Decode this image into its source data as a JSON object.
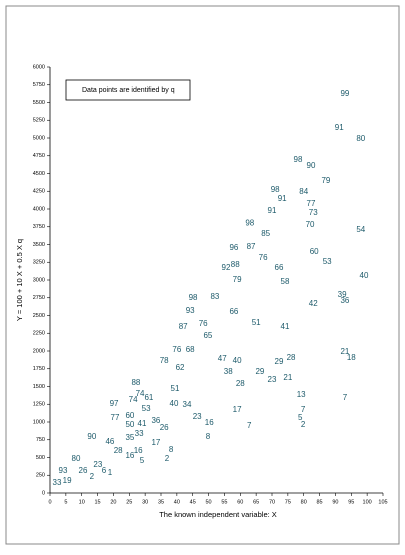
{
  "chart_data": {
    "type": "scatter",
    "xlabel": "The known independent variable: X",
    "ylabel": "Y = 100 + 10 X + 0.5 X q",
    "legend_text": "Data points are identified by q",
    "xlim": [
      0,
      105
    ],
    "xticks": [
      0,
      5,
      10,
      15,
      20,
      25,
      30,
      35,
      40,
      45,
      50,
      55,
      60,
      65,
      70,
      75,
      80,
      85,
      90,
      95,
      100,
      105
    ],
    "ylim": [
      0,
      6000
    ],
    "yticks": [
      0,
      250,
      500,
      750,
      1000,
      1250,
      1500,
      1750,
      2000,
      2250,
      2500,
      2750,
      3000,
      3250,
      3500,
      3750,
      4000,
      4250,
      4500,
      4750,
      5000,
      5250,
      5500,
      5750,
      6000
    ],
    "color": "#1d5a6a",
    "x": [
      93,
      91.2,
      98,
      78.2,
      82.3,
      87,
      71,
      73.2,
      80,
      82.3,
      70,
      83,
      82,
      63,
      68,
      98,
      58,
      63.4,
      83.3,
      67.2,
      87.4,
      55.5,
      58.4,
      72.2,
      59,
      99,
      74.1,
      45.1,
      52,
      92.1,
      93,
      83,
      44.2,
      58,
      48.3,
      65,
      74.1,
      42,
      49.8,
      40,
      44.2,
      93,
      95,
      36,
      54.3,
      59,
      72.2,
      76,
      41,
      56.2,
      66.2,
      70,
      75,
      60,
      27.1,
      39.4,
      28.4,
      79.2,
      93,
      31.2,
      20.2,
      26.2,
      39.1,
      43.2,
      30.3,
      59,
      79.8,
      20.5,
      25.2,
      46.4,
      78.9,
      25.2,
      29,
      33.4,
      50.2,
      62.8,
      79.8,
      36,
      28.1,
      13.2,
      49.8,
      25.2,
      18.9,
      33.4,
      21.5,
      27.8,
      38.2,
      25.2,
      29,
      36.9,
      8.2,
      15.1,
      17,
      18.9,
      10.4,
      4.1,
      13.2,
      5.4,
      2.2
    ],
    "values": [
      5620,
      5140,
      4985,
      4690,
      4610,
      4395,
      4270,
      4140,
      4240,
      4070,
      3970,
      3945,
      3775,
      3800,
      3650,
      3705,
      3450,
      3465,
      3395,
      3310,
      3255,
      3170,
      3210,
      3170,
      3000,
      3055,
      2970,
      2745,
      2760,
      2790,
      2705,
      2660,
      2565,
      2550,
      2380,
      2395,
      2340,
      2340,
      2210,
      2015,
      2015,
      1985,
      1900,
      1860,
      1890,
      1860,
      1845,
      1900,
      1760,
      1705,
      1705,
      1590,
      1620,
      1535,
      1550,
      1465,
      1395,
      1380,
      1340,
      1340,
      1255,
      1310,
      1255,
      1240,
      1185,
      1170,
      1170,
      1055,
      1085,
      1070,
      1055,
      960,
      970,
      1015,
      985,
      945,
      960,
      915,
      830,
      790,
      790,
      775,
      720,
      705,
      590,
      590,
      605,
      520,
      450,
      480,
      480,
      395,
      310,
      280,
      310,
      310,
      225,
      170,
      140
    ],
    "point_labels": [
      "99",
      "91",
      "80",
      "98",
      "90",
      "79",
      "98",
      "91",
      "84",
      "77",
      "91",
      "73",
      "70",
      "98",
      "85",
      "54",
      "96",
      "87",
      "60",
      "76",
      "53",
      "92",
      "88",
      "66",
      "79",
      "40",
      "58",
      "98",
      "83",
      "39",
      "36",
      "42",
      "93",
      "66",
      "76",
      "51",
      "41",
      "87",
      "65",
      "76",
      "68",
      "21",
      "18",
      "78",
      "47",
      "40",
      "29",
      "28",
      "62",
      "38",
      "29",
      "23",
      "21",
      "28",
      "88",
      "51",
      "74",
      "13",
      "7",
      "61",
      "97",
      "74",
      "40",
      "34",
      "53",
      "17",
      "7",
      "77",
      "60",
      "23",
      "5",
      "50",
      "41",
      "36",
      "16",
      "7",
      "2",
      "26",
      "33",
      "90",
      "8",
      "35",
      "46",
      "17",
      "28",
      "16",
      "8",
      "16",
      "5",
      "2",
      "80",
      "23",
      "6",
      "1",
      "26",
      "93",
      "2",
      "19",
      "33"
    ]
  }
}
